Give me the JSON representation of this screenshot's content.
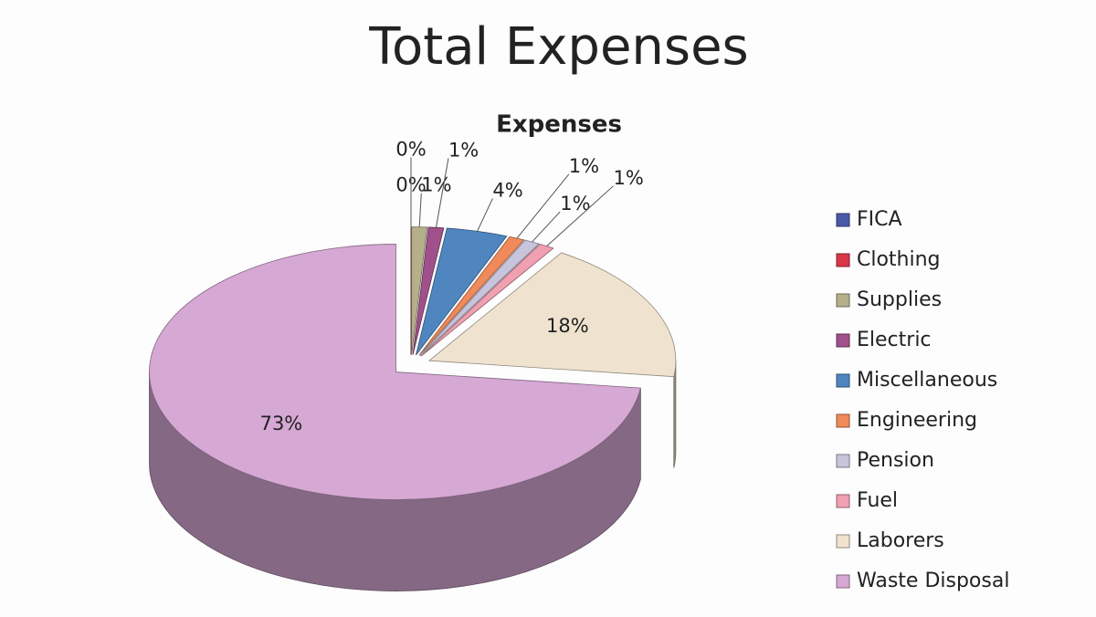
{
  "title": "Total Expenses",
  "chart_data": {
    "type": "pie",
    "title": "Expenses",
    "categories": [
      "FICA",
      "Clothing",
      "Supplies",
      "Electric",
      "Miscellaneous",
      "Engineering",
      "Pension",
      "Fuel",
      "Laborers",
      "Waste Disposal"
    ],
    "values": [
      0,
      0,
      1,
      1,
      4,
      1,
      1,
      1,
      18,
      73
    ],
    "value_labels": [
      "0%",
      "0%",
      "1%",
      "1%",
      "4%",
      "1%",
      "1%",
      "1%",
      "18%",
      "73%"
    ],
    "colors": [
      "#4a5aa8",
      "#d9364a",
      "#b5b08a",
      "#a0508a",
      "#4f86c0",
      "#f08a5a",
      "#c8c4dc",
      "#f0a0b0",
      "#efe3d0",
      "#d6a8d4"
    ],
    "legend": "right"
  }
}
